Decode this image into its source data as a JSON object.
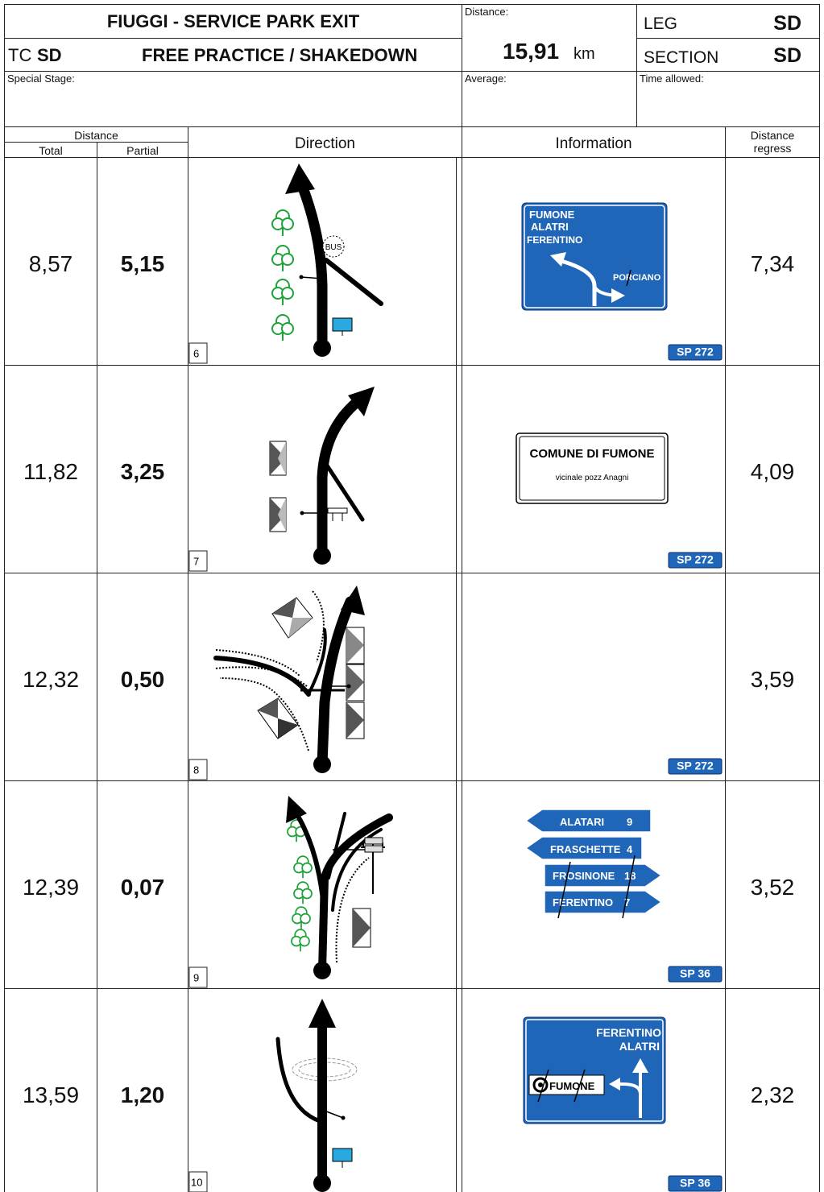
{
  "header": {
    "title": "FIUGGI - SERVICE PARK EXIT",
    "tc_label": "TC",
    "tc_value": "SD",
    "subtitle": "FREE PRACTICE / SHAKEDOWN",
    "distance_label": "Distance:",
    "distance_value": "15,91",
    "distance_unit": "km",
    "leg_label": "LEG",
    "leg_value": "SD",
    "section_label": "SECTION",
    "section_value": "SD",
    "special_stage_label": "Special Stage:",
    "average_label": "Average:",
    "time_allowed_label": "Time allowed:"
  },
  "columns": {
    "distance": "Distance",
    "total": "Total",
    "partial": "Partial",
    "direction": "Direction",
    "information": "Information",
    "regress_1": "Distance",
    "regress_2": "regress"
  },
  "rows": [
    {
      "number": "6",
      "total": "8,57",
      "partial": "5,15",
      "regress": "7,34",
      "road": "SP 272",
      "bus": "BUS",
      "sign": [
        "FUMONE",
        "ALATRI",
        "FERENTINO",
        "PORCIANO"
      ]
    },
    {
      "number": "7",
      "total": "11,82",
      "partial": "3,25",
      "regress": "4,09",
      "road": "SP 272",
      "sign": [
        "COMUNE DI FUMONE",
        "vicinale pozz Anagni"
      ]
    },
    {
      "number": "8",
      "total": "12,32",
      "partial": "0,50",
      "regress": "3,59",
      "road": "SP 272"
    },
    {
      "number": "9",
      "total": "12,39",
      "partial": "0,07",
      "regress": "3,52",
      "road": "SP 36",
      "sign": [
        [
          "ALATARI",
          "9"
        ],
        [
          "FRASCHETTE",
          "4"
        ],
        [
          "FROSINONE",
          "18"
        ],
        [
          "FERENTINO",
          "7"
        ]
      ]
    },
    {
      "number": "10",
      "total": "13,59",
      "partial": "1,20",
      "regress": "2,32",
      "road": "SP 36",
      "sign": [
        "FERENTINO",
        "ALATRI",
        "FUMONE"
      ]
    }
  ]
}
